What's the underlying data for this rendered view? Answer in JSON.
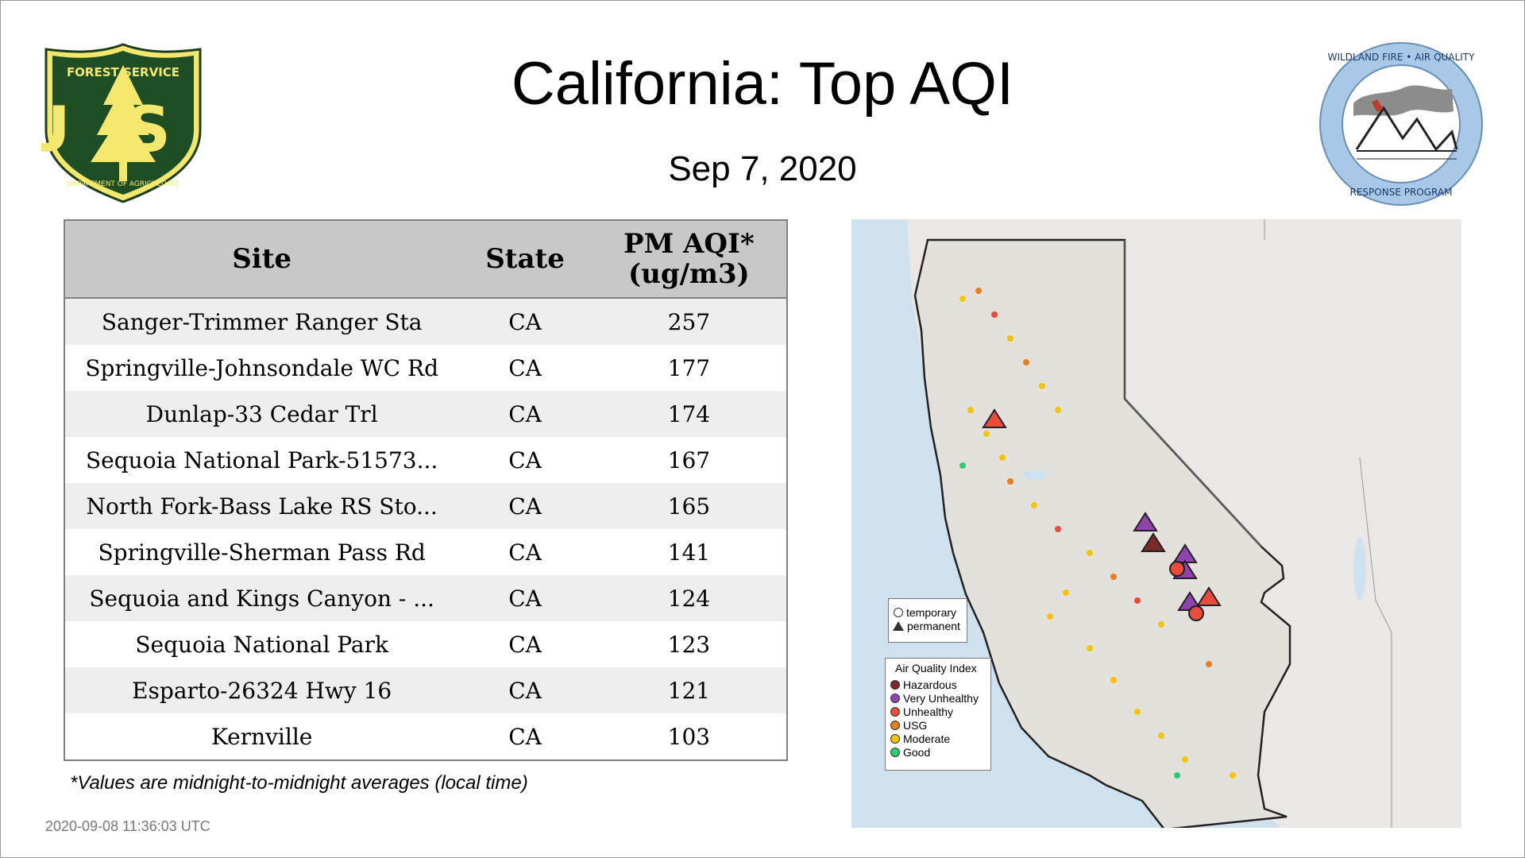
{
  "page": {
    "title": "California: Top AQI",
    "date": "Sep  7, 2020"
  },
  "logos": {
    "left": {
      "top_text": "FOREST SERVICE",
      "letters": "US",
      "bottom_text": "DEPARTMENT OF AGRICULTURE"
    },
    "right": {
      "top_text": "WILDLAND FIRE • AIR QUALITY",
      "bottom_text": "RESPONSE PROGRAM"
    }
  },
  "table": {
    "headers": {
      "site": "Site",
      "state": "State",
      "pm_line1": "PM AQI*",
      "pm_line2": "(ug/m3)"
    },
    "rows": [
      {
        "site": "Sanger-Trimmer Ranger Sta",
        "state": "CA",
        "aqi": "257"
      },
      {
        "site": "Springville-Johnsondale WC Rd",
        "state": "CA",
        "aqi": "177"
      },
      {
        "site": "Dunlap-33 Cedar Trl",
        "state": "CA",
        "aqi": "174"
      },
      {
        "site": "Sequoia National Park-51573...",
        "state": "CA",
        "aqi": "167"
      },
      {
        "site": "North Fork-Bass Lake RS Sto...",
        "state": "CA",
        "aqi": "165"
      },
      {
        "site": "Springville-Sherman Pass Rd",
        "state": "CA",
        "aqi": "141"
      },
      {
        "site": "Sequoia and Kings Canyon - ...",
        "state": "CA",
        "aqi": "124"
      },
      {
        "site": "Sequoia National Park",
        "state": "CA",
        "aqi": "123"
      },
      {
        "site": "Esparto-26324 Hwy 16",
        "state": "CA",
        "aqi": "121"
      },
      {
        "site": "Kernville",
        "state": "CA",
        "aqi": "103"
      }
    ]
  },
  "footnote": "*Values are midnight-to-midnight averages (local time)",
  "timestamp": "2020-09-08 11:36:03 UTC",
  "map": {
    "shape_legend": {
      "temporary": "temporary",
      "permanent": "permanent"
    },
    "aqi_legend": {
      "title": "Air Quality Index",
      "items": [
        {
          "label": "Hazardous",
          "color": "#7b2a2a"
        },
        {
          "label": "Very Unhealthy",
          "color": "#8e44ad"
        },
        {
          "label": "Unhealthy",
          "color": "#e74c3c"
        },
        {
          "label": "USG",
          "color": "#e67e22"
        },
        {
          "label": "Moderate",
          "color": "#f1c40f"
        },
        {
          "label": "Good",
          "color": "#2ecc71"
        }
      ]
    }
  }
}
